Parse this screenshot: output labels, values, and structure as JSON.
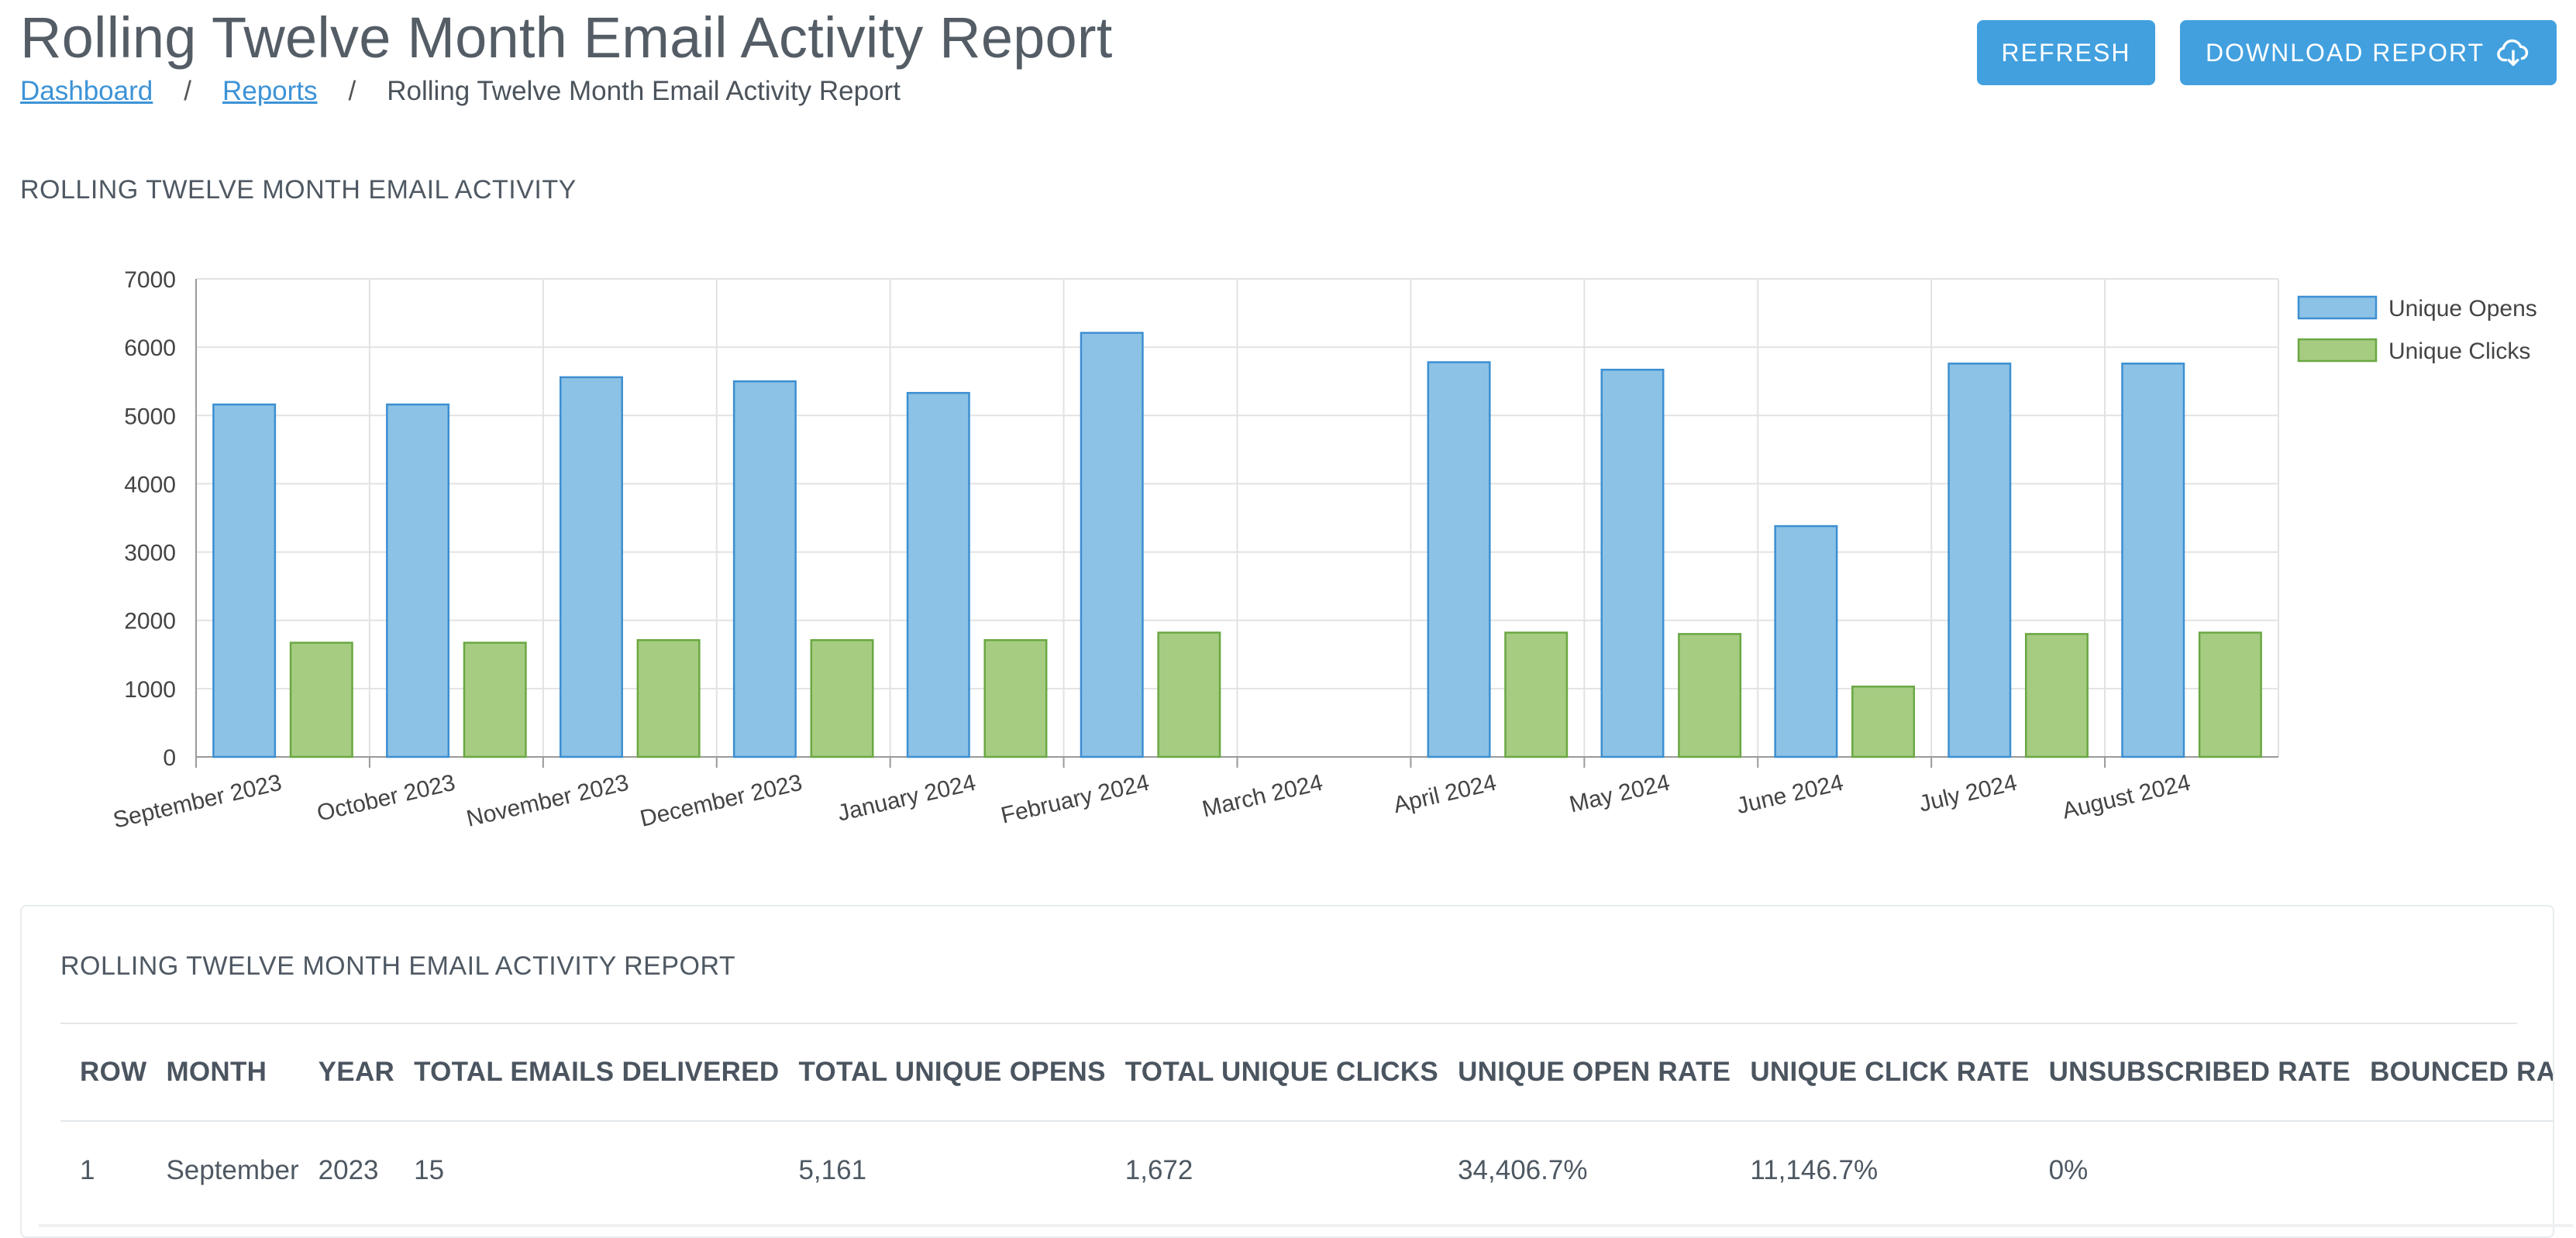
{
  "header": {
    "title": "Rolling Twelve Month Email Activity Report",
    "breadcrumb": {
      "dashboard": "Dashboard",
      "reports": "Reports",
      "current": "Rolling Twelve Month Email Activity Report",
      "separator": "/"
    },
    "buttons": {
      "refresh": "REFRESH",
      "download": "DOWNLOAD REPORT",
      "download_icon": "cloud-download-icon"
    }
  },
  "chart_section": {
    "title": "ROLLING TWELVE MONTH EMAIL ACTIVITY"
  },
  "colors": {
    "accent": "#42a0df",
    "opens_fill": "#8cc2e6",
    "opens_stroke": "#3d8fd1",
    "clicks_fill": "#a6cc82",
    "clicks_stroke": "#6aa843"
  },
  "chart_data": {
    "type": "bar",
    "categories": [
      "September 2023",
      "October 2023",
      "November 2023",
      "December 2023",
      "January 2024",
      "February 2024",
      "March 2024",
      "April 2024",
      "May 2024",
      "June 2024",
      "July 2024",
      "August 2024"
    ],
    "series": [
      {
        "name": "Unique Opens",
        "values": [
          5161,
          5161,
          5560,
          5500,
          5330,
          6210,
          0,
          5780,
          5670,
          3380,
          5760,
          5760
        ]
      },
      {
        "name": "Unique Clicks",
        "values": [
          1672,
          1672,
          1710,
          1710,
          1710,
          1820,
          0,
          1820,
          1800,
          1030,
          1800,
          1820
        ]
      }
    ],
    "ylim": [
      0,
      7000
    ],
    "yticks": [
      0,
      1000,
      2000,
      3000,
      4000,
      5000,
      6000,
      7000
    ],
    "grid": true,
    "legend": "top-right"
  },
  "table": {
    "title": "ROLLING TWELVE MONTH EMAIL ACTIVITY REPORT",
    "columns": [
      "ROW",
      "MONTH",
      "YEAR",
      "TOTAL EMAILS DELIVERED",
      "TOTAL UNIQUE OPENS",
      "TOTAL UNIQUE CLICKS",
      "UNIQUE OPEN RATE",
      "UNIQUE CLICK RATE",
      "UNSUBSCRIBED RATE",
      "BOUNCED RATE"
    ],
    "rows": [
      [
        "1",
        "September",
        "2023",
        "15",
        "5,161",
        "1,672",
        "34,406.7%",
        "11,146.7%",
        "0%",
        ""
      ]
    ]
  }
}
